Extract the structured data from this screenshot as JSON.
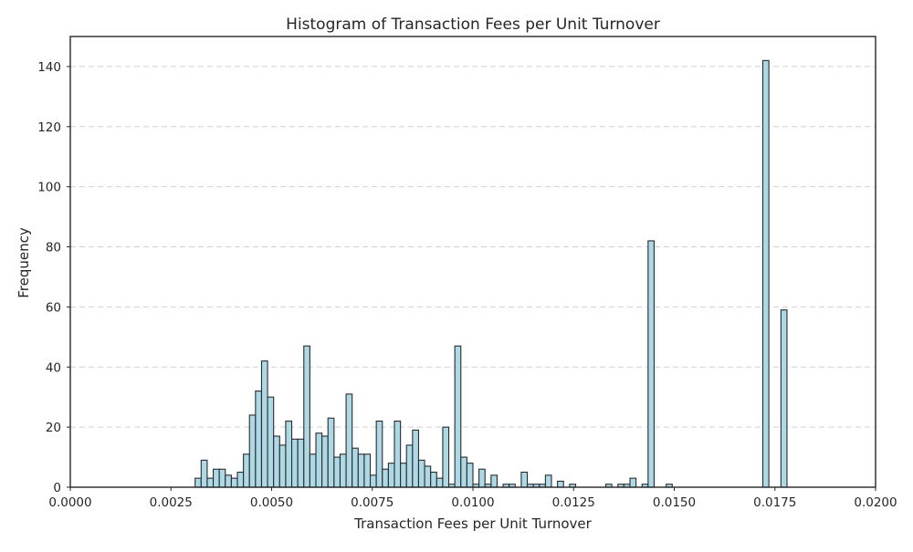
{
  "chart_data": {
    "type": "histogram",
    "title": "Histogram of Transaction Fees per Unit Turnover",
    "xlabel": "Transaction Fees per Unit Turnover",
    "ylabel": "Frequency",
    "xlim": [
      0.0,
      0.02
    ],
    "ylim": [
      0,
      150
    ],
    "xticks": [
      0.0,
      0.0025,
      0.005,
      0.0075,
      0.01,
      0.0125,
      0.015,
      0.0175,
      0.02
    ],
    "xtick_labels": [
      "0.0000",
      "0.0025",
      "0.0050",
      "0.0075",
      "0.0100",
      "0.0125",
      "0.0150",
      "0.0175",
      "0.0200"
    ],
    "yticks": [
      0,
      20,
      40,
      60,
      80,
      100,
      120,
      140
    ],
    "ytick_labels": [
      "0",
      "20",
      "40",
      "60",
      "80",
      "100",
      "120",
      "140"
    ],
    "grid": "y-dashed",
    "bar_color": "#add8e6",
    "edge_color": "#2b2b2b",
    "bin_start": 0.0031,
    "bin_width": 0.00015,
    "counts": [
      3,
      9,
      3,
      6,
      6,
      4,
      3,
      5,
      11,
      24,
      32,
      42,
      30,
      17,
      14,
      22,
      16,
      16,
      47,
      11,
      18,
      17,
      23,
      10,
      11,
      31,
      13,
      11,
      11,
      4,
      22,
      6,
      8,
      22,
      8,
      14,
      19,
      9,
      7,
      5,
      3,
      20,
      1,
      47,
      10,
      8,
      1,
      6,
      1,
      4,
      0,
      1,
      1,
      0,
      5,
      1,
      1,
      1,
      4,
      0,
      2,
      0,
      1,
      0,
      0,
      0,
      0,
      0,
      1,
      0,
      1,
      1,
      3,
      0,
      1,
      82,
      0,
      0,
      1,
      0,
      0,
      0,
      0,
      0,
      0,
      0,
      0,
      0,
      0,
      0,
      0,
      0,
      0,
      0,
      142,
      0,
      0,
      59
    ]
  }
}
